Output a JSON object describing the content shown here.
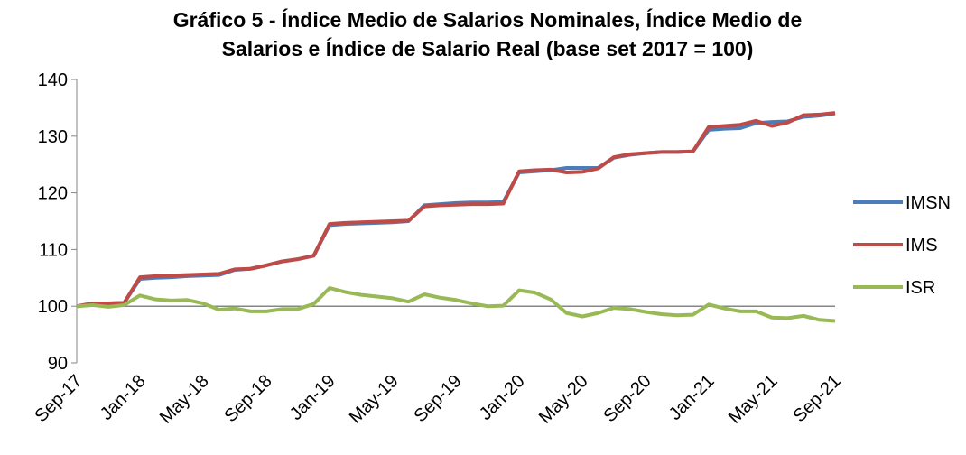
{
  "chart_data": {
    "type": "line",
    "title": [
      "Gráfico 5 - Índice Medio de Salarios Nominales, Índice Medio de",
      "Salarios e Índice de Salario Real (base set 2017 = 100)"
    ],
    "categories": [
      "Sep-17",
      null,
      null,
      null,
      "Jan-18",
      null,
      null,
      null,
      "May-18",
      null,
      null,
      null,
      "Sep-18",
      null,
      null,
      null,
      "Jan-19",
      null,
      null,
      null,
      "May-19",
      null,
      null,
      null,
      "Sep-19",
      null,
      null,
      null,
      "Jan-20",
      null,
      null,
      null,
      "May-20",
      null,
      null,
      null,
      "Sep-20",
      null,
      null,
      null,
      "Jan-21",
      null,
      null,
      null,
      "May-21",
      null,
      null,
      null,
      "Sep-21"
    ],
    "series": [
      {
        "name": "IMSN",
        "color": "#4a7ebb",
        "values": [
          100,
          100.5,
          100.5,
          100.6,
          104.8,
          105.0,
          105.1,
          105.3,
          105.4,
          105.5,
          106.4,
          106.6,
          107.2,
          107.9,
          108.3,
          108.9,
          114.3,
          114.5,
          114.6,
          114.7,
          114.8,
          115.0,
          117.8,
          118.0,
          118.2,
          118.3,
          118.3,
          118.4,
          123.6,
          123.8,
          124.0,
          124.4,
          124.4,
          124.4,
          126.2,
          126.7,
          127.0,
          127.2,
          127.2,
          127.3,
          131.1,
          131.3,
          131.4,
          132.3,
          132.5,
          132.6,
          133.4,
          133.6,
          134.0
        ]
      },
      {
        "name": "IMS",
        "color": "#be4b48",
        "values": [
          100,
          100.5,
          100.5,
          100.6,
          105.1,
          105.3,
          105.4,
          105.5,
          105.6,
          105.7,
          106.5,
          106.6,
          107.2,
          107.9,
          108.3,
          108.9,
          114.5,
          114.7,
          114.8,
          114.9,
          115.0,
          115.1,
          117.6,
          117.8,
          117.9,
          118.0,
          118.0,
          118.1,
          123.8,
          124.0,
          124.1,
          123.6,
          123.7,
          124.3,
          126.3,
          126.8,
          127.0,
          127.2,
          127.2,
          127.3,
          131.6,
          131.8,
          132.0,
          132.7,
          131.8,
          132.4,
          133.7,
          133.8,
          134.1
        ]
      },
      {
        "name": "ISR",
        "color": "#98b954",
        "values": [
          100,
          100.2,
          99.9,
          100.2,
          101.9,
          101.2,
          101.0,
          101.1,
          100.5,
          99.4,
          99.6,
          99.1,
          99.1,
          99.5,
          99.5,
          100.4,
          103.2,
          102.5,
          102.0,
          101.7,
          101.4,
          100.8,
          102.1,
          101.5,
          101.1,
          100.5,
          100.0,
          100.1,
          102.8,
          102.4,
          101.2,
          98.8,
          98.2,
          98.8,
          99.7,
          99.5,
          99.0,
          98.6,
          98.4,
          98.5,
          100.3,
          99.6,
          99.1,
          99.1,
          98.0,
          97.9,
          98.3,
          97.6,
          97.4
        ]
      }
    ],
    "ylim": [
      90,
      140
    ],
    "yticks": [
      90,
      100,
      110,
      120,
      130,
      140
    ],
    "axis_crossing": 100,
    "grid": false,
    "legend": "right"
  }
}
